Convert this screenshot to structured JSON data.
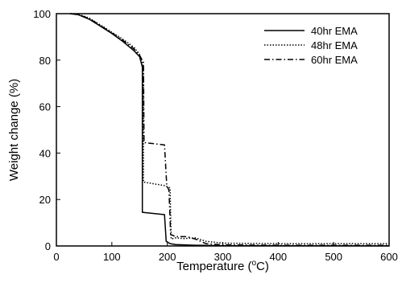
{
  "chart_data": {
    "type": "line",
    "title": "",
    "xlabel": "Temperature (°C)",
    "xlabel_parts": {
      "prefix": "Temperature (",
      "sup": "o",
      "suffix": "C)"
    },
    "ylabel": "Weight change (%)",
    "xlim": [
      0,
      600
    ],
    "ylim": [
      0,
      100
    ],
    "x_ticks": [
      0,
      100,
      200,
      300,
      400,
      500,
      600
    ],
    "y_ticks": [
      0,
      20,
      40,
      60,
      80,
      100
    ],
    "grid": false,
    "legend_position": "top-right",
    "series": [
      {
        "name": "40hr EMA",
        "style": "solid",
        "points": [
          [
            25,
            100
          ],
          [
            40,
            99.5
          ],
          [
            60,
            97.5
          ],
          [
            80,
            94.5
          ],
          [
            100,
            91.5
          ],
          [
            120,
            88
          ],
          [
            140,
            84
          ],
          [
            150,
            81.5
          ],
          [
            155,
            77
          ],
          [
            155,
            14.5
          ],
          [
            195,
            13.5
          ],
          [
            198,
            2
          ],
          [
            205,
            1
          ],
          [
            215,
            0.6
          ],
          [
            250,
            0.3
          ],
          [
            300,
            0.15
          ],
          [
            400,
            0.1
          ],
          [
            600,
            0.05
          ]
        ]
      },
      {
        "name": "48hr EMA",
        "style": "dotted",
        "points": [
          [
            25,
            100
          ],
          [
            40,
            99.8
          ],
          [
            60,
            98
          ],
          [
            80,
            95
          ],
          [
            100,
            92
          ],
          [
            120,
            89
          ],
          [
            140,
            85.5
          ],
          [
            150,
            82.5
          ],
          [
            155,
            79
          ],
          [
            157,
            77
          ],
          [
            157,
            27.5
          ],
          [
            195,
            26
          ],
          [
            205,
            25
          ],
          [
            207,
            3
          ],
          [
            215,
            3.5
          ],
          [
            230,
            3.2
          ],
          [
            250,
            3.5
          ],
          [
            270,
            2
          ],
          [
            300,
            1.2
          ],
          [
            400,
            1
          ],
          [
            600,
            1
          ]
        ]
      },
      {
        "name": "60hr EMA",
        "style": "dashdot",
        "points": [
          [
            25,
            100
          ],
          [
            40,
            99.6
          ],
          [
            60,
            97.8
          ],
          [
            80,
            94.8
          ],
          [
            100,
            91.7
          ],
          [
            120,
            88.5
          ],
          [
            140,
            84.8
          ],
          [
            150,
            82
          ],
          [
            157,
            79
          ],
          [
            158,
            44.5
          ],
          [
            195,
            43.5
          ],
          [
            199,
            26
          ],
          [
            203,
            24
          ],
          [
            206,
            5
          ],
          [
            215,
            4
          ],
          [
            235,
            4
          ],
          [
            250,
            3
          ],
          [
            270,
            1
          ],
          [
            300,
            0.5
          ],
          [
            400,
            0.3
          ],
          [
            600,
            0.3
          ]
        ]
      }
    ]
  }
}
